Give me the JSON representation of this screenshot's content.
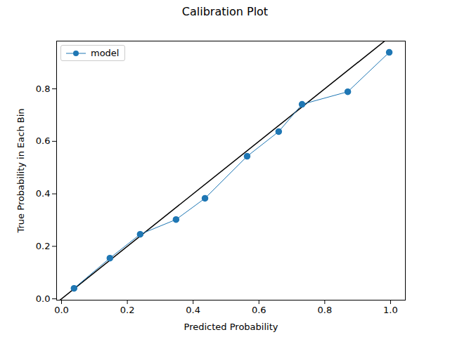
{
  "chart_data": {
    "type": "line",
    "title": "Calibration Plot",
    "x_label": "Predicted Probability",
    "y_label": "True Probability in Each Bin",
    "xlim": [
      -0.015,
      1.045
    ],
    "ylim": [
      -0.005,
      0.982
    ],
    "xticks": [
      {
        "value": 0,
        "label": "0.0"
      },
      0.2,
      0.4,
      0.6,
      0.8,
      {
        "value": 1,
        "label": "1.0"
      }
    ],
    "yticks": [
      {
        "value": 0,
        "label": "0.0"
      },
      0.2,
      0.4,
      0.6,
      0.8
    ],
    "grid": false,
    "legend": "upper left",
    "series": [
      {
        "name": "model",
        "color": "#1f77b4",
        "marker": "circle",
        "line_style": "solid",
        "x": [
          0.038,
          0.147,
          0.239,
          0.348,
          0.436,
          0.564,
          0.66,
          0.731,
          0.87,
          0.996
        ],
        "values": [
          0.04,
          0.155,
          0.246,
          0.302,
          0.383,
          0.543,
          0.637,
          0.741,
          0.789,
          0.939
        ]
      }
    ],
    "reference_line": {
      "color": "#000000",
      "x": [
        -0.015,
        1.045
      ],
      "values": [
        -0.015,
        1.045
      ]
    }
  }
}
